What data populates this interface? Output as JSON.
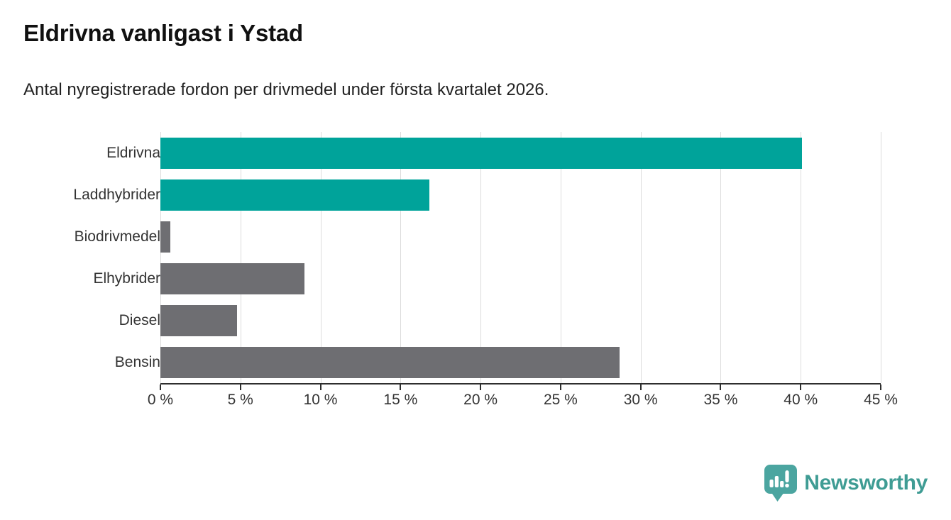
{
  "header": {
    "title": "Eldrivna vanligast i Ystad",
    "subtitle": "Antal nyregistrerade fordon per drivmedel under första kvartalet 2026."
  },
  "chart_data": {
    "type": "bar",
    "orientation": "horizontal",
    "title": "Eldrivna vanligast i Ystad",
    "subtitle": "Antal nyregistrerade fordon per drivmedel under första kvartalet 2026.",
    "categories": [
      "Eldrivna",
      "Laddhybrider",
      "Biodrivmedel",
      "Elhybrider",
      "Diesel",
      "Bensin"
    ],
    "values": [
      40.1,
      16.8,
      0.6,
      9.0,
      4.8,
      28.7
    ],
    "unit": "%",
    "bar_colors": [
      "#00a39a",
      "#00a39a",
      "#6e6e72",
      "#6e6e72",
      "#6e6e72",
      "#6e6e72"
    ],
    "xlabel": "",
    "ylabel": "",
    "xlim": [
      0,
      45
    ],
    "x_tick_step": 5,
    "x_tick_labels": [
      "0 %",
      "5 %",
      "10 %",
      "15 %",
      "20 %",
      "25 %",
      "30 %",
      "35 %",
      "40 %",
      "45 %"
    ],
    "grid": "vertical-only",
    "legend": "none"
  },
  "footer": {
    "brand": "Newsworthy",
    "logo_icon": "newsworthy-speech-bubble-bar-chart-icon"
  },
  "colors": {
    "accent_teal": "#00a39a",
    "neutral_gray": "#6e6e72",
    "gridline": "#dcdcdc",
    "axis": "#2e2e2e",
    "title_text": "#111111",
    "body_text": "#222222",
    "logo_icon_teal": "#4ba5a0",
    "logo_wordmark_teal": "#3f9c94",
    "background": "#ffffff"
  }
}
